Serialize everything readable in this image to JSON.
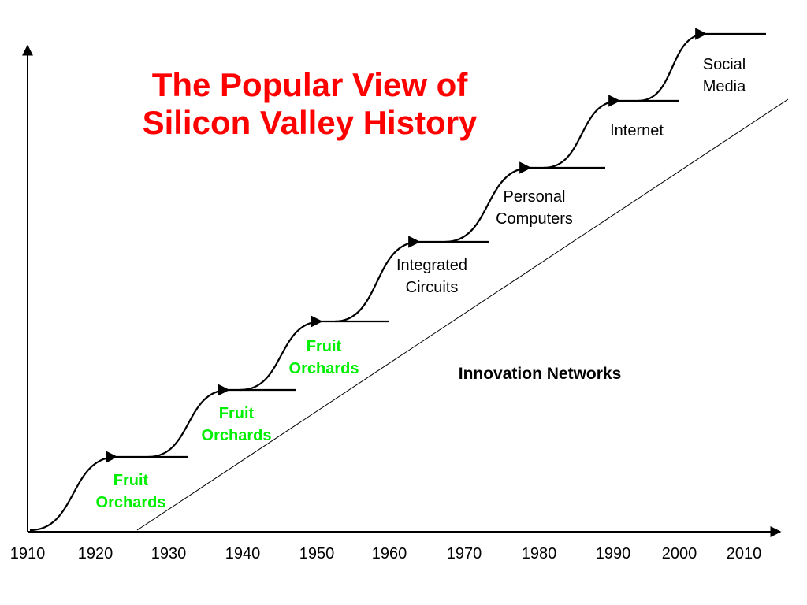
{
  "title": {
    "line1": "The Popular View of",
    "line2": "Silicon Valley History"
  },
  "colors": {
    "title": "#ff0000",
    "green_label": "#00ee00",
    "line": "#000000",
    "background": "#ffffff"
  },
  "x_axis": {
    "ticks": [
      "1910",
      "1920",
      "1930",
      "1940",
      "1950",
      "1960",
      "1970",
      "1980",
      "1990",
      "2000",
      "2010"
    ]
  },
  "trend_label": "Innovation Networks",
  "stages": [
    {
      "lines": [
        "Fruit",
        "Orchards"
      ],
      "color": "green"
    },
    {
      "lines": [
        "Fruit",
        "Orchards"
      ],
      "color": "green"
    },
    {
      "lines": [
        "Fruit",
        "Orchards"
      ],
      "color": "green"
    },
    {
      "lines": [
        "Integrated",
        "Circuits"
      ],
      "color": "black"
    },
    {
      "lines": [
        "Personal",
        "Computers"
      ],
      "color": "black"
    },
    {
      "lines": [
        "Internet"
      ],
      "color": "black"
    },
    {
      "lines": [
        "Social",
        "Media"
      ],
      "color": "black"
    }
  ]
}
